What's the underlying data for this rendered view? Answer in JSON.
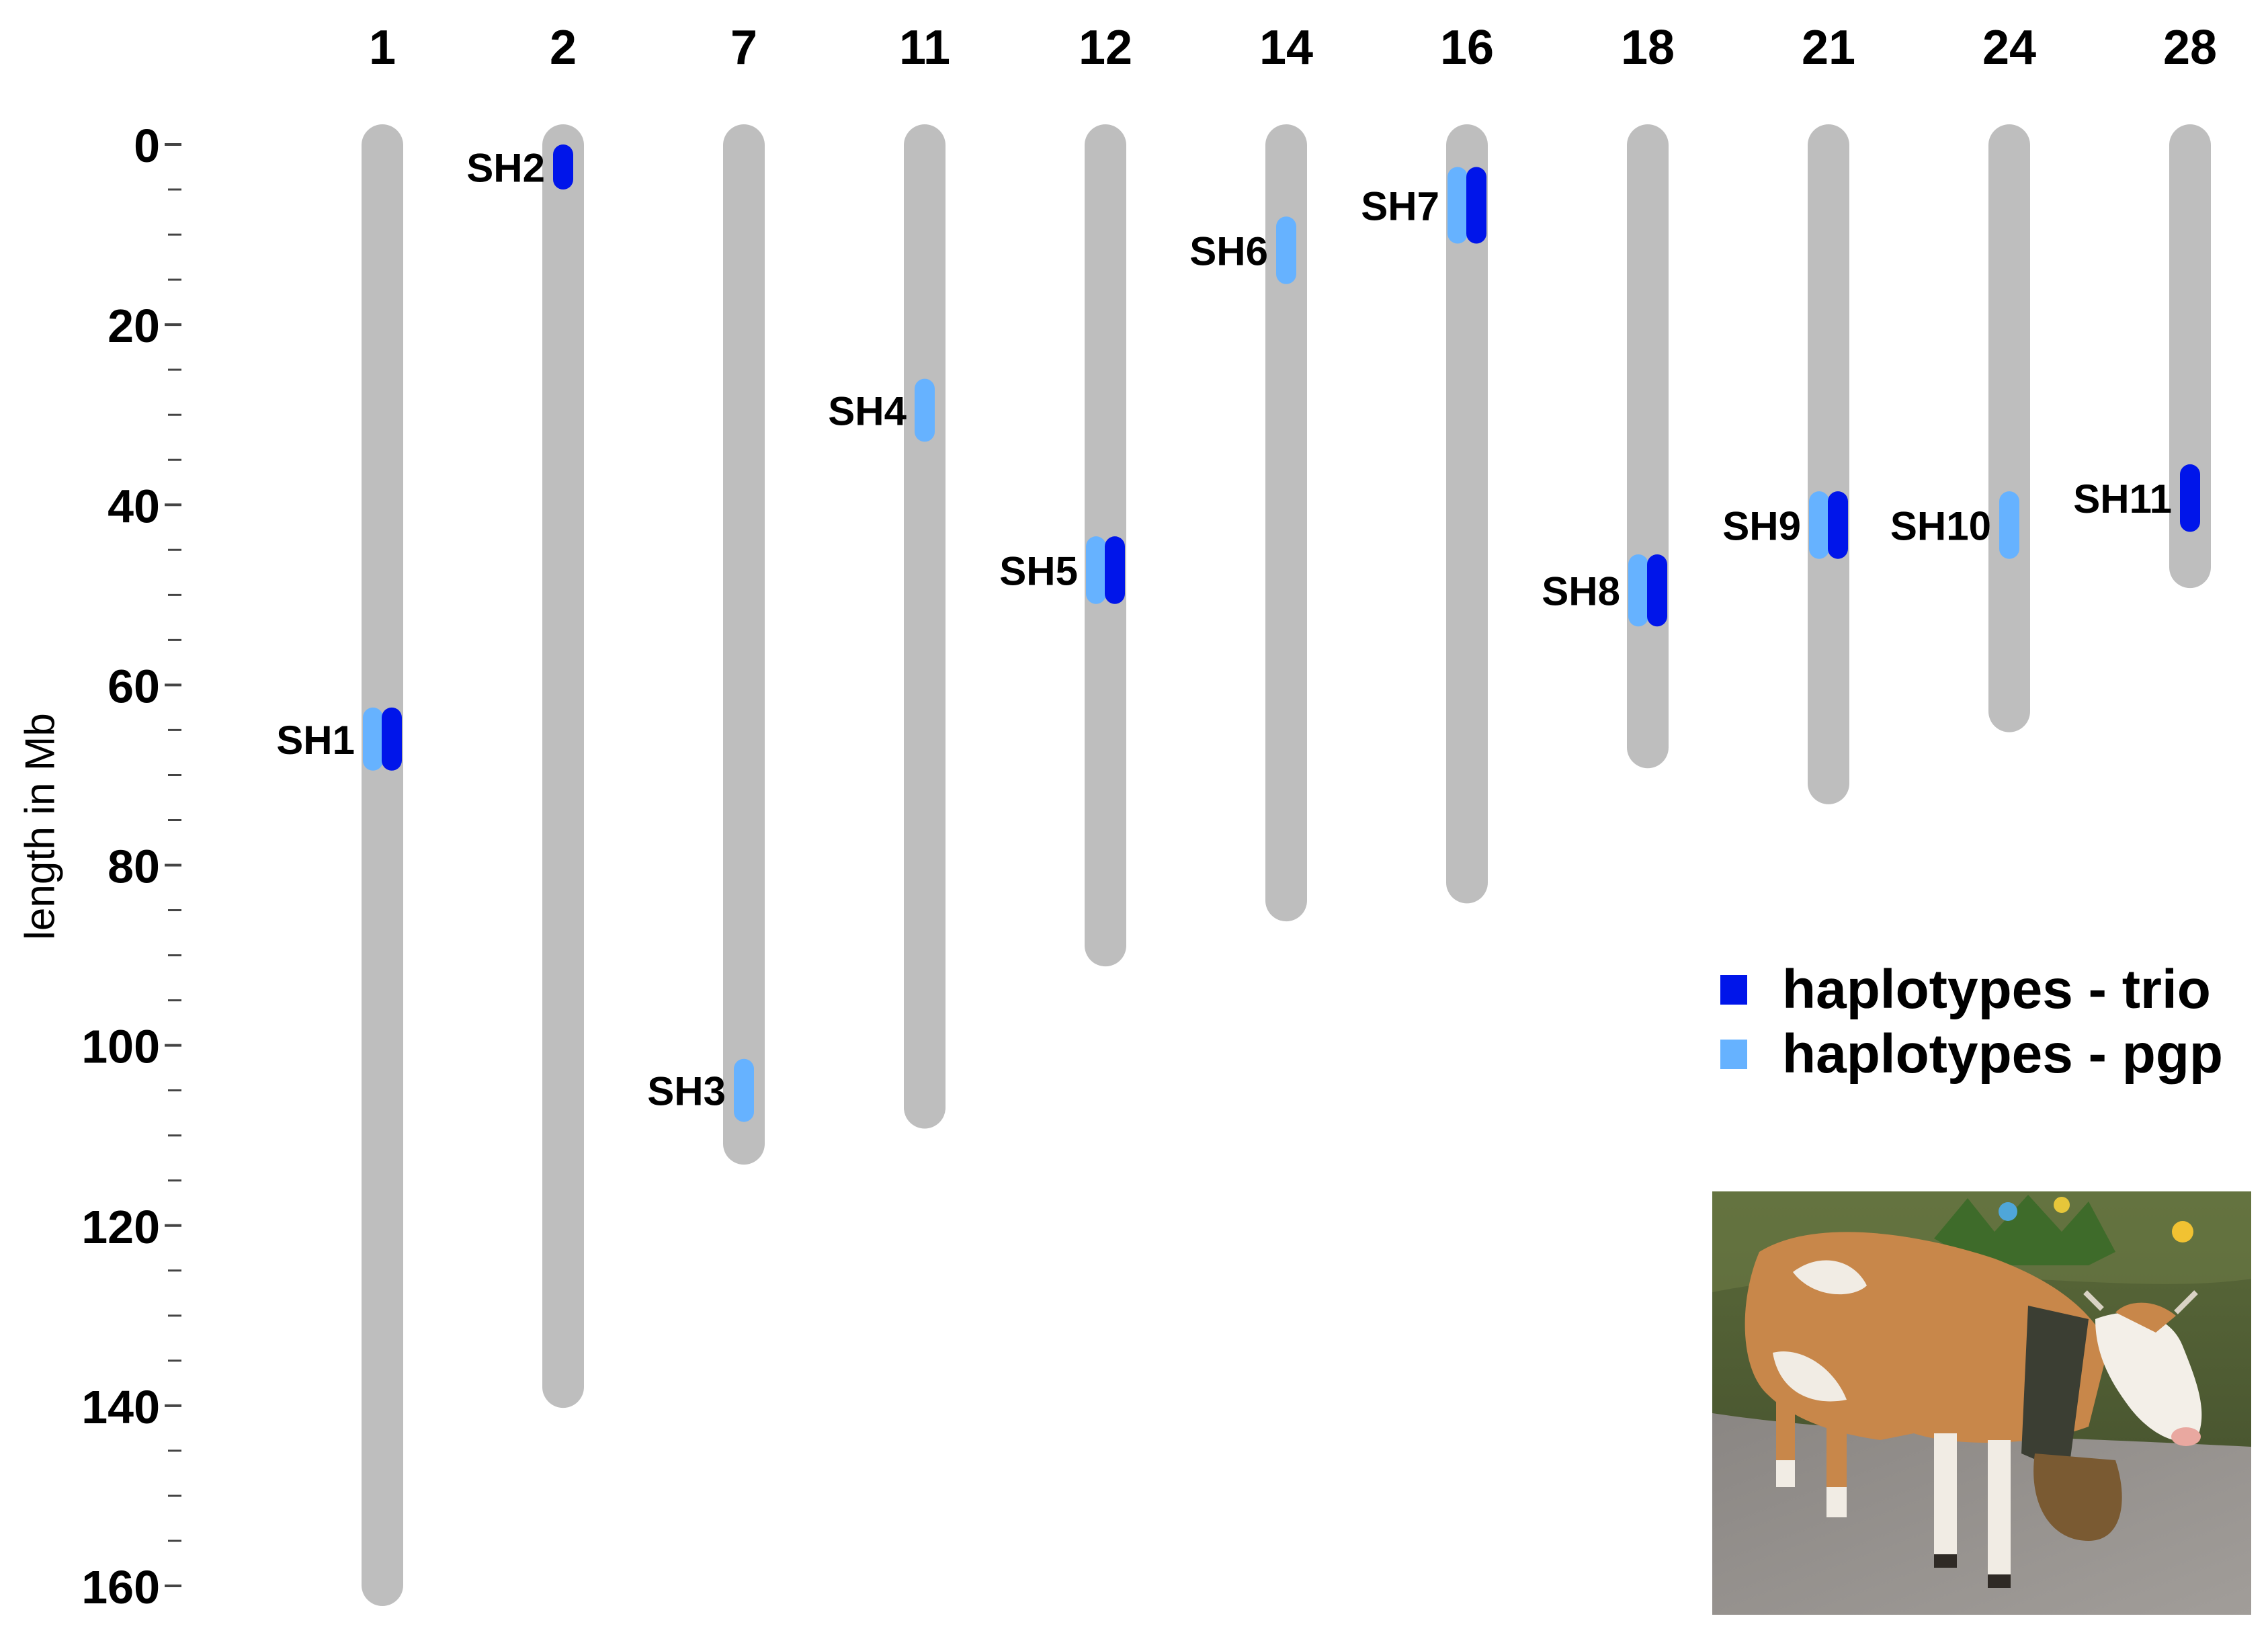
{
  "chart_data": {
    "type": "ideogram",
    "ylabel": "length in Mb",
    "ylim": [
      0,
      160
    ],
    "yticks": [
      0,
      20,
      40,
      60,
      80,
      100,
      120,
      140,
      160
    ],
    "yminor_step": 5,
    "chromosomes": [
      {
        "label": "1",
        "length": 160
      },
      {
        "label": "2",
        "length": 138
      },
      {
        "label": "7",
        "length": 111
      },
      {
        "label": "11",
        "length": 107
      },
      {
        "label": "12",
        "length": 89
      },
      {
        "label": "14",
        "length": 84
      },
      {
        "label": "16",
        "length": 82
      },
      {
        "label": "18",
        "length": 67
      },
      {
        "label": "21",
        "length": 71
      },
      {
        "label": "24",
        "length": 63
      },
      {
        "label": "28",
        "length": 47
      }
    ],
    "regions": [
      {
        "name": "SH1",
        "chr": "1",
        "pgp": [
          62.5,
          69.5
        ],
        "trio": [
          62.5,
          69.5
        ]
      },
      {
        "name": "SH2",
        "chr": "2",
        "pgp": null,
        "trio": [
          0,
          5
        ]
      },
      {
        "name": "SH3",
        "chr": "7",
        "pgp": [
          101.5,
          108.5
        ],
        "trio": null
      },
      {
        "name": "SH4",
        "chr": "11",
        "pgp": [
          26,
          33
        ],
        "trio": null
      },
      {
        "name": "SH5",
        "chr": "12",
        "pgp": [
          43.5,
          51
        ],
        "trio": [
          43.5,
          51
        ]
      },
      {
        "name": "SH6",
        "chr": "14",
        "pgp": [
          8,
          15.5
        ],
        "trio": null
      },
      {
        "name": "SH7",
        "chr": "16",
        "pgp": [
          2.5,
          11
        ],
        "trio": [
          2.5,
          11
        ]
      },
      {
        "name": "SH8",
        "chr": "18",
        "pgp": [
          45.5,
          53.5
        ],
        "trio": [
          45.5,
          53.5
        ]
      },
      {
        "name": "SH9",
        "chr": "21",
        "pgp": [
          38.5,
          46
        ],
        "trio": [
          38.5,
          46
        ]
      },
      {
        "name": "SH10",
        "chr": "24",
        "pgp": [
          38.5,
          46
        ],
        "trio": null
      },
      {
        "name": "SH11",
        "chr": "28",
        "pgp": null,
        "trio": [
          35.5,
          43
        ]
      }
    ],
    "legend": [
      {
        "label": "haplotypes - trio",
        "color": "#0015ea"
      },
      {
        "label": "haplotypes - pgp",
        "color": "#66b2ff"
      }
    ],
    "legend_position": "right"
  },
  "colors": {
    "chromosome": "#bebebe",
    "trio": "#0015ea",
    "pgp": "#66b2ff"
  },
  "photo": {
    "icon": "cow-photo"
  }
}
